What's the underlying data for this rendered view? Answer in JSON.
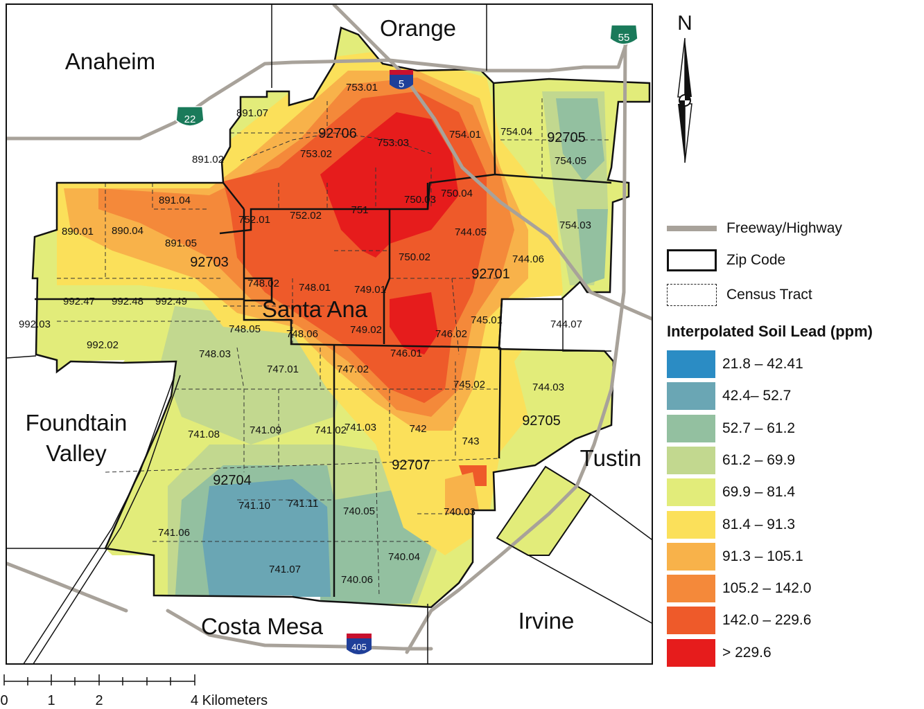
{
  "places": {
    "orange": "Orange",
    "anaheim": "Anaheim",
    "santa_ana": "Santa Ana",
    "foundtain_valley_1": "Foundtain",
    "foundtain_valley_2": "Valley",
    "tustin": "Tustin",
    "irvine": "Irvine",
    "costa_mesa": "Costa Mesa"
  },
  "shields": {
    "i5": "5",
    "i405": "405",
    "sr22": "22",
    "sr55": "55"
  },
  "zip_labels": [
    "92706",
    "92705",
    "92703",
    "92701",
    "92705",
    "92704",
    "92707"
  ],
  "tract_labels": [
    "753.01",
    "891.07",
    "753.02",
    "753.03",
    "754.01",
    "754.04",
    "754.05",
    "891.02",
    "891.04",
    "750.03",
    "750.04",
    "752.01",
    "752.02",
    "751",
    "754.03",
    "890.01",
    "890.04",
    "891.05",
    "744.05",
    "750.02",
    "744.06",
    "748.02",
    "748.01",
    "749.01",
    "992.47",
    "992.48",
    "992.49",
    "992.03",
    "745.01",
    "744.07",
    "748.05",
    "748.06",
    "749.02",
    "746.02",
    "992.02",
    "748.03",
    "746.01",
    "747.01",
    "747.02",
    "745.02",
    "744.03",
    "741.08",
    "741.09",
    "741.02",
    "741.03",
    "742",
    "743",
    "741.10",
    "741.11",
    "740.05",
    "740.03",
    "741.06",
    "740.04",
    "741.07",
    "740.06"
  ],
  "north_arrow": {
    "label": "N"
  },
  "legend": {
    "freeway_label": "Freeway/Highway",
    "zip_label": "Zip Code",
    "tract_label": "Census Tract",
    "title": "Interpolated Soil Lead (ppm)",
    "classes": [
      {
        "label": "21.8 – 42.41",
        "color": "#2b8cc4"
      },
      {
        "label": "42.4– 52.7",
        "color": "#6aa6b4"
      },
      {
        "label": "52.7 – 61.2",
        "color": "#93c0a0"
      },
      {
        "label": "61.2 – 69.9",
        "color": "#c2d88f"
      },
      {
        "label": "69.9 – 81.4",
        "color": "#e2ec7a"
      },
      {
        "label": "81.4 – 91.3",
        "color": "#fbe05a"
      },
      {
        "label": "91.3 – 105.1",
        "color": "#f8b24a"
      },
      {
        "label": "105.2 – 142.0",
        "color": "#f4893a"
      },
      {
        "label": "142.0 – 229.6",
        "color": "#ee5a2a"
      },
      {
        "label": "> 229.6",
        "color": "#e61c1c"
      }
    ]
  },
  "scale_bar": {
    "ticks": [
      "0",
      "1",
      "2",
      "4 Kilometers"
    ]
  },
  "colors": {
    "road": "#a8a29a",
    "shield_interstate_top": "#c8102e",
    "shield_interstate": "#1f3f99",
    "shield_state": "#1a7a5a"
  }
}
